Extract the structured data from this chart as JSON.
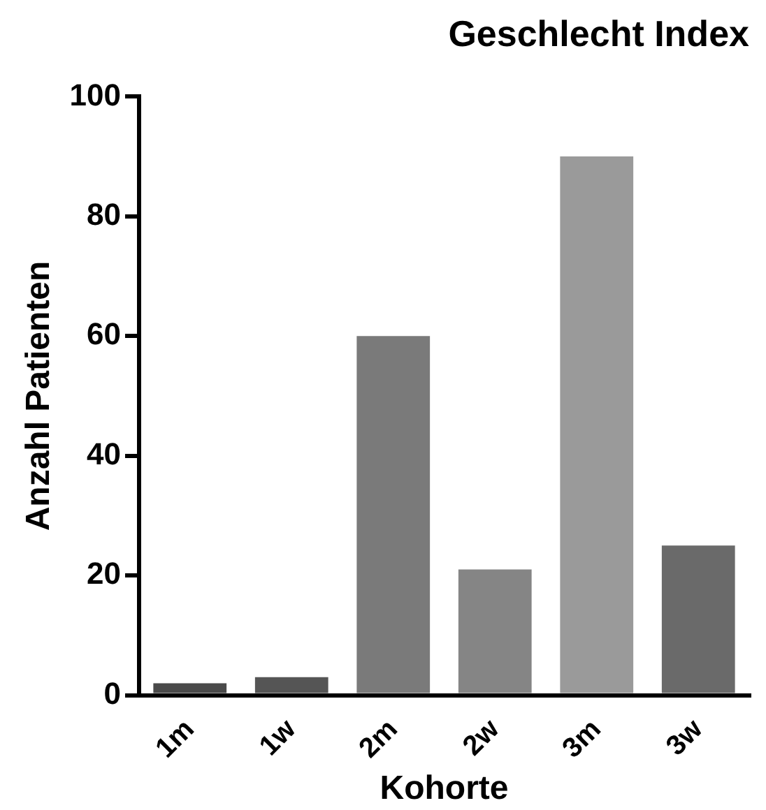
{
  "chart_data": {
    "type": "bar",
    "title": "Geschlecht Index",
    "xlabel": "Kohorte",
    "ylabel": "Anzahl Patienten",
    "categories": [
      "1m",
      "1w",
      "2m",
      "2w",
      "3m",
      "3w"
    ],
    "values": [
      2,
      3,
      60,
      21,
      90,
      25
    ],
    "colors": [
      "#4a4a4a",
      "#555555",
      "#7a7a7a",
      "#858585",
      "#9a9a9a",
      "#6a6a6a"
    ],
    "ylim": [
      0,
      100
    ],
    "yticks": [
      0,
      20,
      40,
      60,
      80,
      100
    ],
    "grid": false,
    "legend": false
  }
}
